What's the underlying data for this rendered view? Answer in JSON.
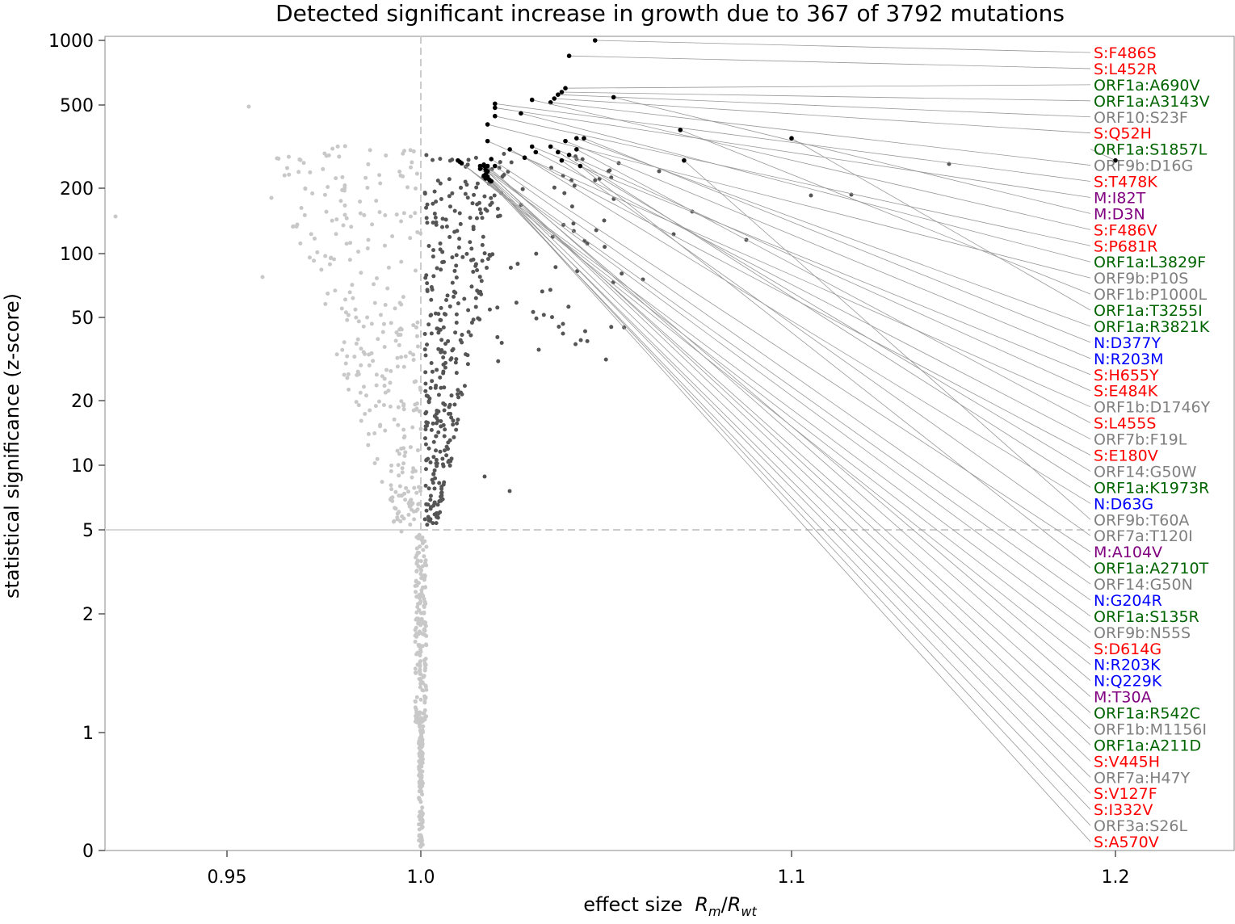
{
  "chart_data": {
    "type": "scatter",
    "title": "Detected significant increase in growth due to 367 of 3792 mutations",
    "xlabel": "effect size",
    "xlabel_math": [
      "R",
      "m",
      "/",
      "R",
      "wt"
    ],
    "ylabel": "statistical significance (z-score)",
    "x_ticks": [
      0.95,
      1.0,
      1.1,
      1.2
    ],
    "x_tick_labels": [
      "0.95",
      "1.0",
      "1.1",
      "1.2"
    ],
    "y_ticks": [
      0,
      1,
      2,
      5,
      10,
      20,
      50,
      100,
      200,
      500,
      1000
    ],
    "y_tick_labels": [
      "0",
      "1",
      "2",
      "5",
      "10",
      "20",
      "50",
      "100",
      "200",
      "500",
      "1000"
    ],
    "x_scale": "reciprocal-like (stretched near 1.0)",
    "y_scale": "log-like (symmetric log)",
    "xlim": [
      0.93,
      1.25
    ],
    "ylim": [
      0,
      1050
    ],
    "thresholds": {
      "effect_size": 1.0,
      "z_score": 5
    },
    "colors": {
      "Spike": "#ff0000",
      "ORF1a": "#006400",
      "ORF1b": "#808080",
      "N": "#0000ff",
      "M": "#800080",
      "other": "#808080",
      "nonsignificant": "#c8c8c8",
      "significant": "#555555",
      "top": "#000000",
      "leader": "#999999"
    },
    "labeled_points": [
      {
        "label": "S:F486S",
        "gene": "Spike",
        "x": 1.047,
        "y": 1000
      },
      {
        "label": "S:L452R",
        "gene": "Spike",
        "x": 1.04,
        "y": 880
      },
      {
        "label": "ORF1a:A690V",
        "gene": "ORF1a",
        "x": 1.039,
        "y": 630
      },
      {
        "label": "ORF1a:A3143V",
        "gene": "ORF1a",
        "x": 1.038,
        "y": 600
      },
      {
        "label": "ORF10:S23F",
        "gene": "other",
        "x": 1.037,
        "y": 580
      },
      {
        "label": "S:Q52H",
        "gene": "Spike",
        "x": 1.036,
        "y": 550
      },
      {
        "label": "ORF1a:S1857L",
        "gene": "ORF1a",
        "x": 1.2,
        "y": 300
      },
      {
        "label": "ORF9b:D16G",
        "gene": "other",
        "x": 1.035,
        "y": 520
      },
      {
        "label": "S:T478K",
        "gene": "Spike",
        "x": 1.02,
        "y": 510
      },
      {
        "label": "M:I82T",
        "gene": "M",
        "x": 1.02,
        "y": 490
      },
      {
        "label": "M:D3N",
        "gene": "M",
        "x": 1.052,
        "y": 560
      },
      {
        "label": "S:F486V",
        "gene": "Spike",
        "x": 1.03,
        "y": 540
      },
      {
        "label": "S:P681R",
        "gene": "Spike",
        "x": 1.02,
        "y": 460
      },
      {
        "label": "ORF1a:L3829F",
        "gene": "ORF1a",
        "x": 1.027,
        "y": 470
      },
      {
        "label": "ORF9b:P10S",
        "gene": "other",
        "x": 1.018,
        "y": 430
      },
      {
        "label": "ORF1b:P1000L",
        "gene": "ORF1b",
        "x": 1.07,
        "y": 410
      },
      {
        "label": "ORF1a:T3255I",
        "gene": "ORF1a",
        "x": 1.1,
        "y": 380
      },
      {
        "label": "ORF1a:R3821K",
        "gene": "ORF1a",
        "x": 1.042,
        "y": 380
      },
      {
        "label": "N:D377Y",
        "gene": "N",
        "x": 1.044,
        "y": 380
      },
      {
        "label": "N:R203M",
        "gene": "N",
        "x": 1.039,
        "y": 370
      },
      {
        "label": "S:H655Y",
        "gene": "Spike",
        "x": 1.03,
        "y": 350
      },
      {
        "label": "S:E484K",
        "gene": "Spike",
        "x": 1.035,
        "y": 350
      },
      {
        "label": "ORF1b:D1746Y",
        "gene": "ORF1b",
        "x": 1.018,
        "y": 370
      },
      {
        "label": "S:L455S",
        "gene": "Spike",
        "x": 1.042,
        "y": 340
      },
      {
        "label": "ORF7b:F19L",
        "gene": "other",
        "x": 1.031,
        "y": 330
      },
      {
        "label": "S:E180V",
        "gene": "Spike",
        "x": 1.024,
        "y": 340
      },
      {
        "label": "ORF14:G50W",
        "gene": "other",
        "x": 1.037,
        "y": 330
      },
      {
        "label": "ORF1a:K1973R",
        "gene": "ORF1a",
        "x": 1.04,
        "y": 320
      },
      {
        "label": "N:D63G",
        "gene": "N",
        "x": 1.028,
        "y": 310
      },
      {
        "label": "ORF9b:T60A",
        "gene": "other",
        "x": 1.071,
        "y": 300
      },
      {
        "label": "ORF7a:T120I",
        "gene": "other",
        "x": 1.038,
        "y": 300
      },
      {
        "label": "M:A104V",
        "gene": "M",
        "x": 1.019,
        "y": 305
      },
      {
        "label": "ORF1a:A2710T",
        "gene": "ORF1a",
        "x": 1.043,
        "y": 280
      },
      {
        "label": "ORF14:G50N",
        "gene": "other",
        "x": 1.02,
        "y": 280
      },
      {
        "label": "N:G204R",
        "gene": "N",
        "x": 1.017,
        "y": 275
      },
      {
        "label": "ORF1a:S135R",
        "gene": "ORF1a",
        "x": 1.016,
        "y": 280
      },
      {
        "label": "ORF9b:N55S",
        "gene": "other",
        "x": 1.01,
        "y": 300
      },
      {
        "label": "S:D614G",
        "gene": "Spike",
        "x": 1.0105,
        "y": 295
      },
      {
        "label": "N:R203K",
        "gene": "N",
        "x": 1.011,
        "y": 290
      },
      {
        "label": "N:Q229K",
        "gene": "N",
        "x": 1.017,
        "y": 285
      },
      {
        "label": "M:T30A",
        "gene": "M",
        "x": 1.018,
        "y": 280
      },
      {
        "label": "ORF1a:R542C",
        "gene": "ORF1a",
        "x": 1.016,
        "y": 270
      },
      {
        "label": "ORF1b:M1156I",
        "gene": "ORF1b",
        "x": 1.0175,
        "y": 265
      },
      {
        "label": "ORF1a:A211D",
        "gene": "ORF1a",
        "x": 1.018,
        "y": 260
      },
      {
        "label": "S:V445H",
        "gene": "Spike",
        "x": 1.0175,
        "y": 250
      },
      {
        "label": "ORF7a:H47Y",
        "gene": "other",
        "x": 1.017,
        "y": 245
      },
      {
        "label": "S:V127F",
        "gene": "Spike",
        "x": 1.018,
        "y": 240
      },
      {
        "label": "S:I332V",
        "gene": "Spike",
        "x": 1.0175,
        "y": 235
      },
      {
        "label": "ORF3a:S26L",
        "gene": "other",
        "x": 1.0185,
        "y": 230
      },
      {
        "label": "S:A570V",
        "gene": "Spike",
        "x": 1.019,
        "y": 225
      }
    ]
  }
}
